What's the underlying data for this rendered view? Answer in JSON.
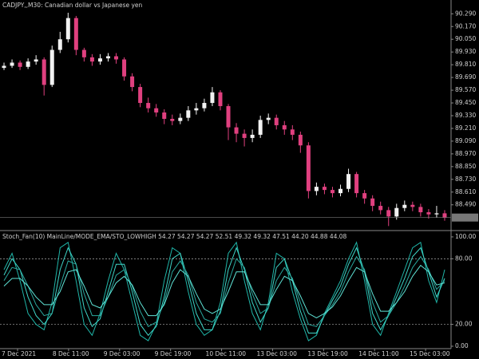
{
  "chart_data": [
    {
      "type": "candlestick",
      "title": "CADJPY,,M30:  Canadian dollar vs Japanese yen",
      "up_color": "#f2f2f2",
      "down_color": "#e0407f",
      "open": [
        89.78,
        89.8,
        89.83,
        89.79,
        89.84,
        89.86,
        89.62,
        89.95,
        90.05,
        90.25,
        89.95,
        89.88,
        89.84,
        89.87,
        89.89,
        89.86,
        89.7,
        89.6,
        89.45,
        89.4,
        89.36,
        89.3,
        89.28,
        89.31,
        89.38,
        89.4,
        89.45,
        89.55,
        89.42,
        89.22,
        89.16,
        89.12,
        89.15,
        89.29,
        89.31,
        89.24,
        89.2,
        89.15,
        89.05,
        88.62,
        88.66,
        88.63,
        88.6,
        88.64,
        88.78,
        88.6,
        88.55,
        88.48,
        88.44,
        88.38,
        88.46,
        88.49,
        88.47,
        88.42,
        88.4,
        88.41
      ],
      "high": [
        89.83,
        89.86,
        89.85,
        89.87,
        89.9,
        89.88,
        89.99,
        90.12,
        90.3,
        90.27,
        89.97,
        89.91,
        89.91,
        89.92,
        89.92,
        89.88,
        89.73,
        89.63,
        89.5,
        89.44,
        89.39,
        89.34,
        89.35,
        89.42,
        89.45,
        89.49,
        89.6,
        89.57,
        89.44,
        89.26,
        89.2,
        89.2,
        89.33,
        89.35,
        89.34,
        89.28,
        89.24,
        89.18,
        89.08,
        88.7,
        88.69,
        88.66,
        88.68,
        88.83,
        88.8,
        88.63,
        88.58,
        88.52,
        88.47,
        88.5,
        88.53,
        88.52,
        88.5,
        88.45,
        88.48,
        88.44
      ],
      "low": [
        89.76,
        89.78,
        89.76,
        89.77,
        89.81,
        89.52,
        89.6,
        89.92,
        90.02,
        89.9,
        89.84,
        89.8,
        89.81,
        89.84,
        89.82,
        89.66,
        89.56,
        89.41,
        89.36,
        89.32,
        89.25,
        89.24,
        89.25,
        89.28,
        89.34,
        89.37,
        89.42,
        89.38,
        89.1,
        89.08,
        89.04,
        89.08,
        89.12,
        89.25,
        89.2,
        89.15,
        89.1,
        88.98,
        88.55,
        88.58,
        88.59,
        88.56,
        88.57,
        88.61,
        88.56,
        88.5,
        88.43,
        88.4,
        88.29,
        88.35,
        88.43,
        88.43,
        88.38,
        88.36,
        88.37,
        88.34
      ],
      "close": [
        89.8,
        89.83,
        89.79,
        89.84,
        89.86,
        89.62,
        89.95,
        90.05,
        90.25,
        89.95,
        89.88,
        89.84,
        89.87,
        89.89,
        89.86,
        89.7,
        89.6,
        89.45,
        89.4,
        89.36,
        89.3,
        89.28,
        89.31,
        89.38,
        89.4,
        89.45,
        89.55,
        89.42,
        89.22,
        89.16,
        89.12,
        89.15,
        89.29,
        89.31,
        89.24,
        89.2,
        89.15,
        89.05,
        88.62,
        88.66,
        88.63,
        88.6,
        88.64,
        88.78,
        88.6,
        88.55,
        88.48,
        88.44,
        88.38,
        88.46,
        88.49,
        88.47,
        88.42,
        88.4,
        88.41,
        88.37
      ],
      "ylim": [
        88.27,
        90.42
      ],
      "yticks": [
        {
          "value": 90.29,
          "label": "90.290"
        },
        {
          "value": 90.17,
          "label": "90.170"
        },
        {
          "value": 90.05,
          "label": "90.050"
        },
        {
          "value": 89.93,
          "label": "89.930"
        },
        {
          "value": 89.81,
          "label": "89.810"
        },
        {
          "value": 89.69,
          "label": "89.690"
        },
        {
          "value": 89.57,
          "label": "89.570"
        },
        {
          "value": 89.45,
          "label": "89.450"
        },
        {
          "value": 89.33,
          "label": "89.330"
        },
        {
          "value": 89.21,
          "label": "89.210"
        },
        {
          "value": 89.09,
          "label": "89.090"
        },
        {
          "value": 88.97,
          "label": "88.970"
        },
        {
          "value": 88.85,
          "label": "88.850"
        },
        {
          "value": 88.73,
          "label": "88.730"
        },
        {
          "value": 88.61,
          "label": "88.610"
        },
        {
          "value": 88.49,
          "label": "88.490"
        }
      ]
    },
    {
      "type": "line",
      "title": "Stoch_Fan(10) MainLine/MODE_EMA/STO_LOWHIGH 54.27 54.27 54.27 52.51 49.32 49.32 47.51 44.20 44.88 44.08",
      "series": [
        {
          "color": "#1fb5a8",
          "values": [
            70,
            85,
            60,
            30,
            20,
            15,
            40,
            90,
            95,
            60,
            20,
            10,
            30,
            60,
            85,
            70,
            40,
            10,
            5,
            20,
            60,
            90,
            85,
            50,
            20,
            10,
            15,
            40,
            85,
            95,
            60,
            30,
            15,
            40,
            85,
            80,
            50,
            25,
            5,
            10,
            30,
            45,
            60,
            80,
            95,
            60,
            20,
            10,
            30,
            50,
            70,
            90,
            95,
            60,
            40,
            70
          ]
        },
        {
          "color": "#3fd6c8",
          "values": [
            65,
            80,
            70,
            45,
            28,
            20,
            30,
            70,
            90,
            75,
            35,
            18,
            25,
            50,
            75,
            75,
            50,
            20,
            10,
            18,
            45,
            80,
            85,
            60,
            30,
            15,
            15,
            32,
            70,
            90,
            70,
            40,
            22,
            35,
            72,
            80,
            60,
            32,
            12,
            12,
            28,
            42,
            55,
            75,
            90,
            68,
            30,
            15,
            28,
            45,
            62,
            82,
            90,
            68,
            45,
            62
          ]
        },
        {
          "color": "#2aa89e",
          "values": [
            60,
            72,
            70,
            55,
            38,
            28,
            30,
            55,
            78,
            75,
            48,
            28,
            28,
            45,
            65,
            70,
            55,
            32,
            18,
            22,
            40,
            68,
            78,
            65,
            40,
            25,
            22,
            30,
            58,
            80,
            72,
            48,
            30,
            35,
            60,
            72,
            62,
            40,
            20,
            18,
            28,
            38,
            50,
            68,
            82,
            70,
            40,
            22,
            28,
            40,
            55,
            72,
            82,
            70,
            52,
            60
          ]
        },
        {
          "color": "#5fe3d6",
          "values": [
            55,
            62,
            62,
            55,
            45,
            38,
            38,
            50,
            68,
            70,
            55,
            38,
            35,
            45,
            58,
            64,
            56,
            40,
            28,
            28,
            38,
            58,
            70,
            64,
            48,
            34,
            30,
            34,
            50,
            68,
            68,
            52,
            38,
            38,
            52,
            64,
            60,
            46,
            30,
            26,
            30,
            36,
            46,
            60,
            72,
            68,
            48,
            32,
            32,
            40,
            50,
            64,
            74,
            68,
            56,
            58
          ]
        }
      ],
      "ylim": [
        -2.2,
        103.6
      ],
      "yticks": [
        {
          "value": 100,
          "label": "100.00"
        },
        {
          "value": 80,
          "label": "80.00"
        },
        {
          "value": 20,
          "label": "20.00"
        },
        {
          "value": 0,
          "label": "0.00"
        }
      ],
      "x_labels": [
        "7 Dec 2021",
        "8 Dec 11:00",
        "9 Dec 03:00",
        "9 Dec 19:00",
        "10 Dec 11:00",
        "13 Dec 03:00",
        "13 Dec 19:00",
        "14 Dec 11:00",
        "15 Dec 03:00"
      ]
    }
  ]
}
